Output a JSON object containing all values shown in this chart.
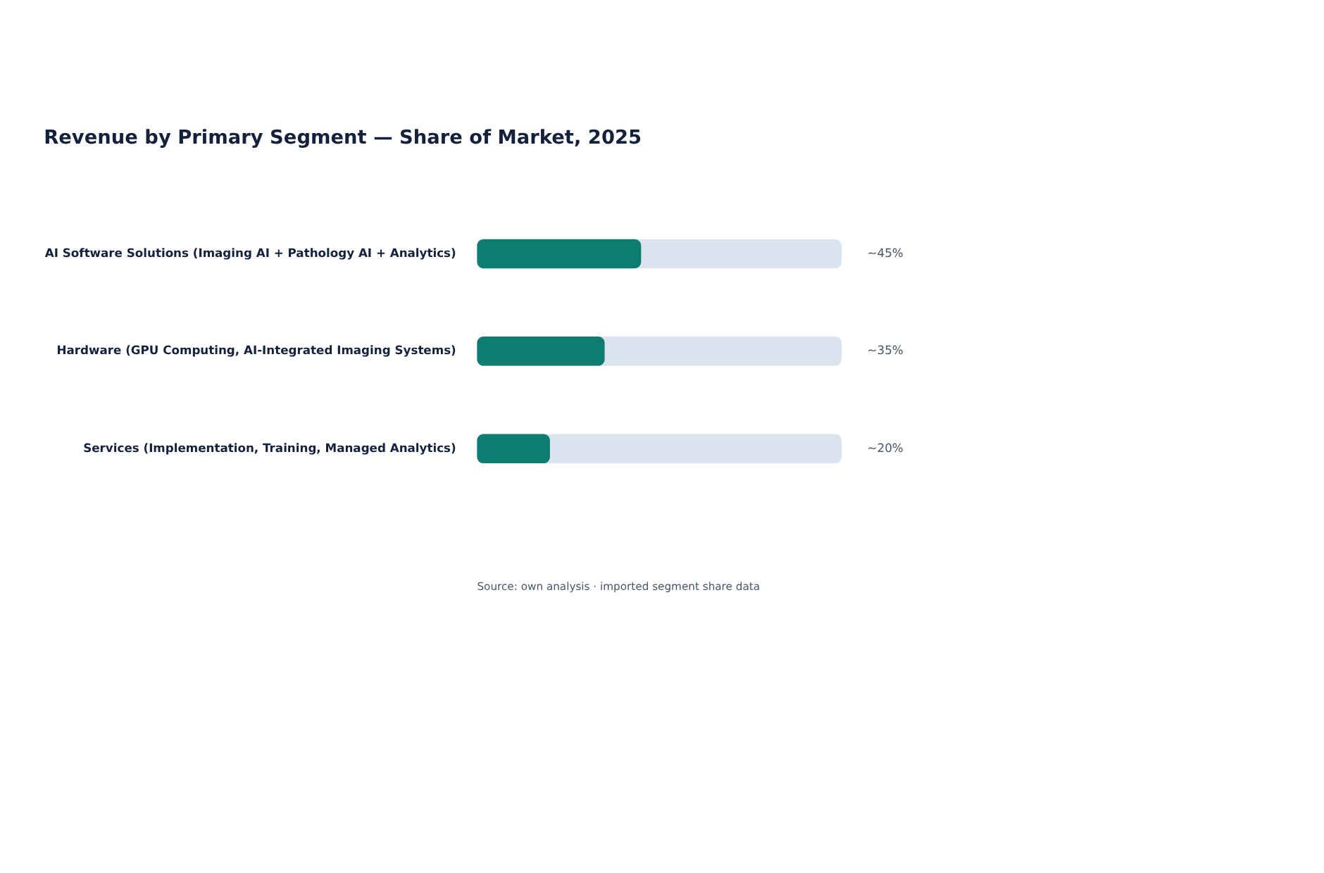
{
  "chart_data": {
    "type": "bar",
    "orientation": "horizontal",
    "title": "Revenue by Primary Segment — Share of Market, 2025",
    "categories": [
      "AI Software Solutions (Imaging AI + Pathology AI + Analytics)",
      "Hardware (GPU Computing, AI-Integrated Imaging Systems)",
      "Services (Implementation, Training, Managed Analytics)"
    ],
    "values": [
      45,
      35,
      20
    ],
    "value_labels": [
      "~45%",
      "~35%",
      "~20%"
    ],
    "color": "#0e7c6e",
    "xlim": [
      0,
      100
    ],
    "tick_labels": "y",
    "annotations": [
      "Source: own analysis · imported segment share data"
    ]
  }
}
